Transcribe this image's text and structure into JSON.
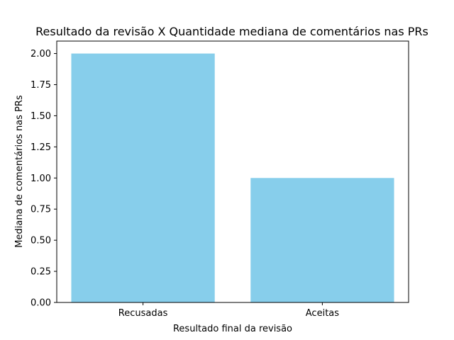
{
  "chart_data": {
    "type": "bar",
    "title": "Resultado da revisão X Quantidade mediana de comentários nas PRs",
    "xlabel": "Resultado final da revisão",
    "ylabel": "Mediana de comentários nas PRs",
    "categories": [
      "Recusadas",
      "Aceitas"
    ],
    "values": [
      2.0,
      1.0
    ],
    "ylim": [
      0,
      2.1
    ],
    "yticks": [
      "0.00",
      "0.25",
      "0.50",
      "0.75",
      "1.00",
      "1.25",
      "1.50",
      "1.75",
      "2.00"
    ],
    "grid": false,
    "bar_color": "#87CEEB"
  }
}
